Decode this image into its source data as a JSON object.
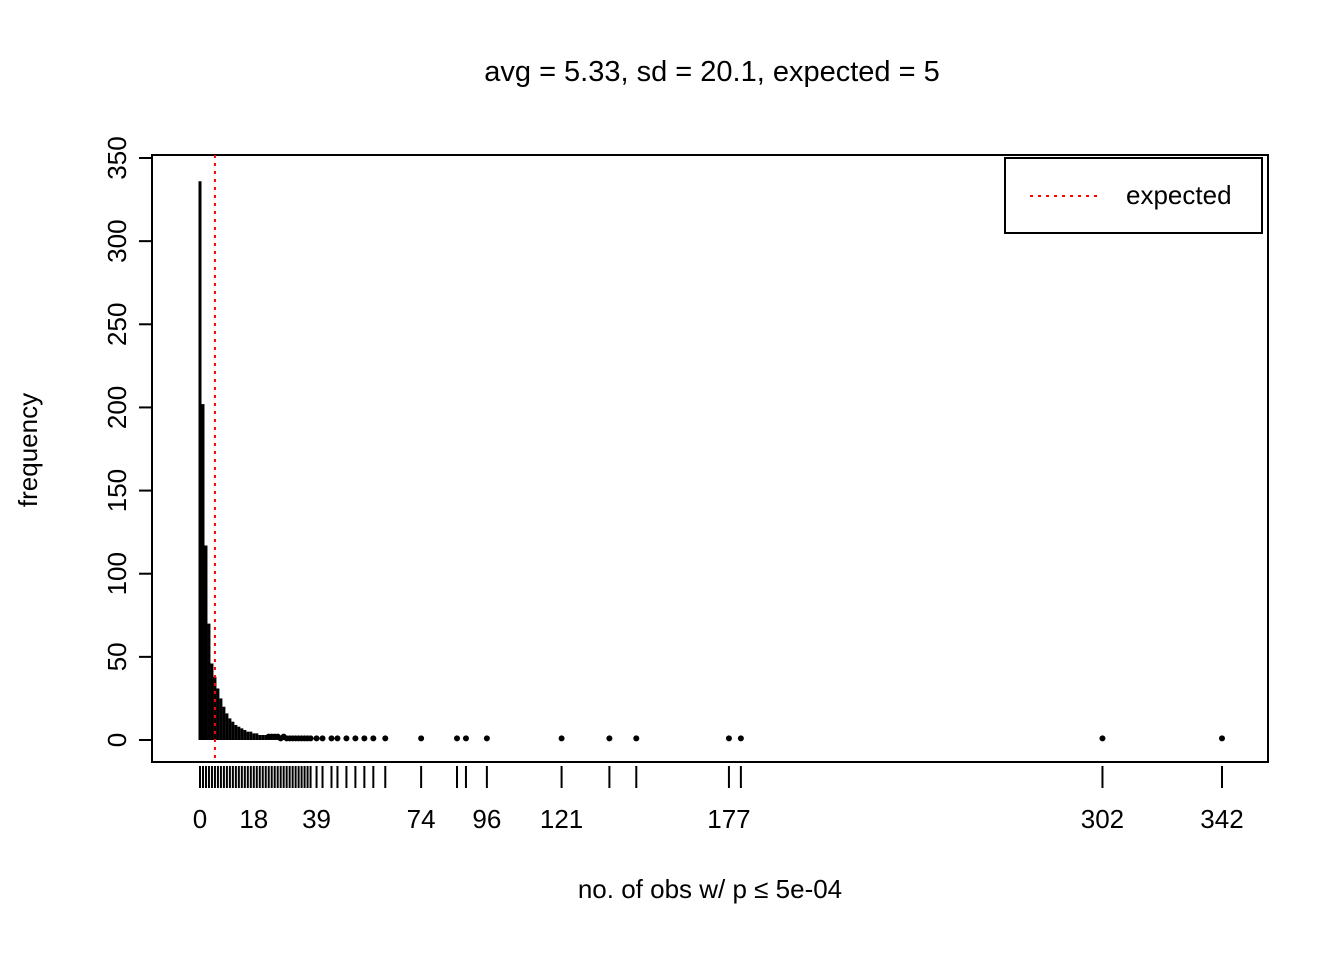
{
  "chart_data": {
    "type": "bar",
    "subtype": "frequency-spike-plot-with-rug",
    "title": "avg = 5.33, sd = 20.1, expected = 5",
    "xlabel": "no. of obs w/ p ≤ 5e-04",
    "ylabel": "frequency",
    "xlim": [
      0,
      342
    ],
    "ylim": [
      0,
      350
    ],
    "grid": false,
    "bar_color": "#000000",
    "y_ticks": [
      0,
      50,
      100,
      150,
      200,
      250,
      300,
      350
    ],
    "x_tick_labels": [
      0,
      18,
      39,
      74,
      96,
      121,
      177,
      302,
      342
    ],
    "expected_line": {
      "x": 5,
      "color": "#FF0000",
      "linestyle": "dotted",
      "label": "expected"
    },
    "legend": {
      "position": "top-right",
      "entries": [
        {
          "label": "expected",
          "color": "#FF0000",
          "linestyle": "dotted"
        }
      ]
    },
    "points": [
      [
        0,
        336
      ],
      [
        1,
        202
      ],
      [
        2,
        117
      ],
      [
        3,
        70
      ],
      [
        4,
        46
      ],
      [
        5,
        38
      ],
      [
        6,
        31
      ],
      [
        7,
        25
      ],
      [
        8,
        20
      ],
      [
        9,
        16
      ],
      [
        10,
        13
      ],
      [
        11,
        11
      ],
      [
        12,
        9
      ],
      [
        13,
        8
      ],
      [
        14,
        7
      ],
      [
        15,
        6
      ],
      [
        16,
        5
      ],
      [
        17,
        5
      ],
      [
        18,
        4
      ],
      [
        19,
        4
      ],
      [
        20,
        3
      ],
      [
        21,
        3
      ],
      [
        22,
        3
      ],
      [
        23,
        2
      ],
      [
        24,
        2
      ],
      [
        25,
        2
      ],
      [
        26,
        2
      ],
      [
        27,
        1
      ],
      [
        28,
        2
      ],
      [
        29,
        1
      ],
      [
        30,
        1
      ],
      [
        31,
        1
      ],
      [
        32,
        1
      ],
      [
        33,
        1
      ],
      [
        34,
        1
      ],
      [
        35,
        1
      ],
      [
        36,
        1
      ],
      [
        37,
        1
      ],
      [
        39,
        1
      ],
      [
        41,
        1
      ],
      [
        44,
        1
      ],
      [
        46,
        1
      ],
      [
        49,
        1
      ],
      [
        52,
        1
      ],
      [
        55,
        1
      ],
      [
        58,
        1
      ],
      [
        62,
        1
      ],
      [
        74,
        1
      ],
      [
        86,
        1
      ],
      [
        89,
        1
      ],
      [
        96,
        1
      ],
      [
        121,
        1
      ],
      [
        137,
        1
      ],
      [
        146,
        1
      ],
      [
        177,
        1
      ],
      [
        181,
        1
      ],
      [
        302,
        1
      ],
      [
        342,
        1
      ]
    ],
    "rug_x": [
      0,
      1,
      2,
      3,
      4,
      5,
      6,
      7,
      8,
      9,
      10,
      11,
      12,
      13,
      14,
      15,
      16,
      17,
      18,
      19,
      20,
      21,
      22,
      23,
      24,
      25,
      26,
      27,
      28,
      29,
      30,
      31,
      32,
      33,
      34,
      35,
      36,
      37,
      39,
      41,
      44,
      46,
      49,
      52,
      55,
      58,
      62,
      74,
      86,
      89,
      96,
      121,
      137,
      146,
      177,
      181,
      302,
      342
    ]
  }
}
